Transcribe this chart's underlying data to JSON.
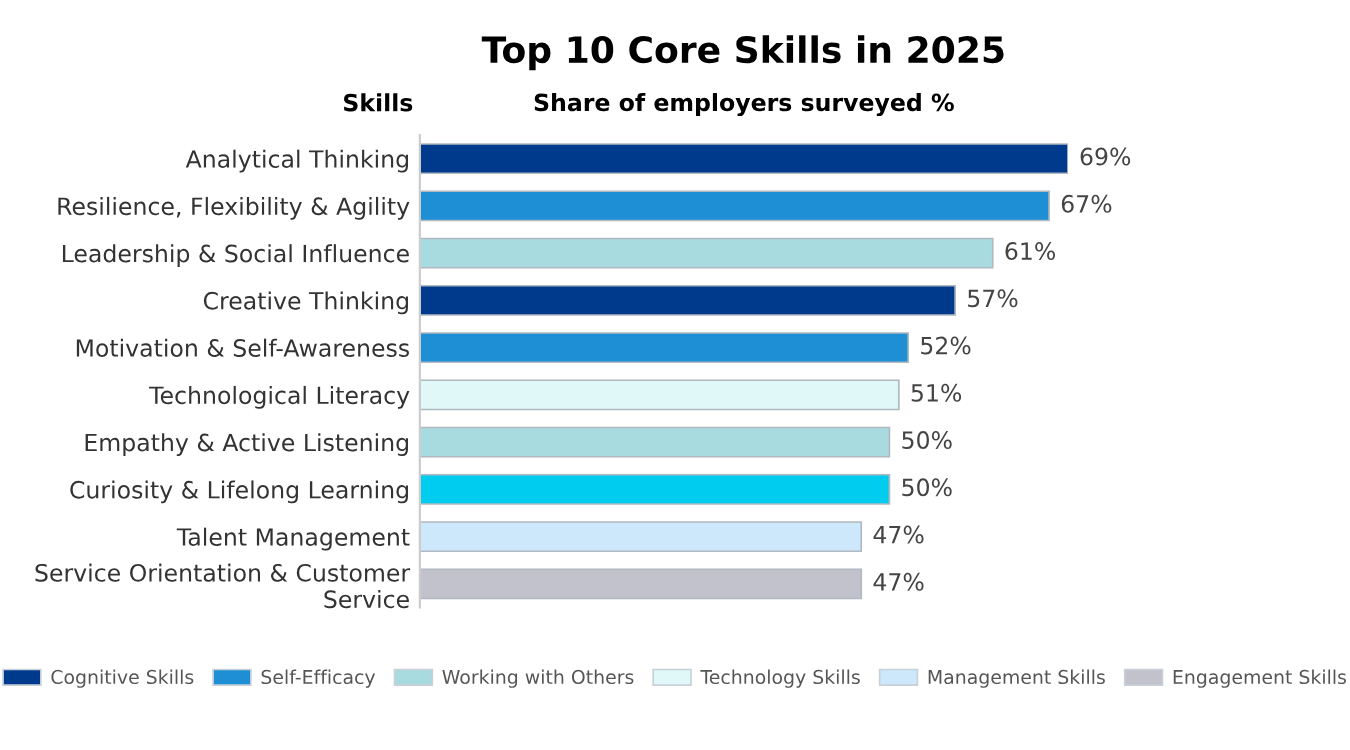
{
  "chart_data": {
    "type": "bar",
    "orientation": "horizontal",
    "title": "Top 10 Core Skills in 2025",
    "ylabel": "Skills",
    "xlabel": "Share of employers surveyed %",
    "categories": [
      "Analytical Thinking",
      "Resilience, Flexibility & Agility",
      "Leadership & Social Influence",
      "Creative Thinking",
      "Motivation & Self-Awareness",
      "Technological Literacy",
      "Empathy & Active Listening",
      "Curiosity & Lifelong Learning",
      "Talent Management",
      "Service Orientation & Customer Service"
    ],
    "series": [
      {
        "name": "Cognitive Skills",
        "color": "#003a8c",
        "values": [
          69,
          null,
          null,
          57,
          null,
          null,
          null,
          null,
          null,
          null
        ],
        "value_labels": [
          "69%",
          null,
          null,
          "57%",
          null,
          null,
          null,
          null,
          null,
          null
        ]
      },
      {
        "name": "Self-Efficacy",
        "color": "#1e8fd5",
        "colors": [
          null,
          "#1e8fd5",
          null,
          null,
          "#1e8fd5",
          null,
          null,
          "#00ccf0",
          null,
          null
        ],
        "values": [
          null,
          67,
          null,
          null,
          52,
          null,
          null,
          50,
          null,
          null
        ],
        "value_labels": [
          null,
          "67%",
          null,
          null,
          "52%",
          null,
          null,
          "50%",
          null,
          null
        ]
      },
      {
        "name": "Working with Others",
        "color": "#a8dbe0",
        "values": [
          null,
          null,
          61,
          null,
          null,
          null,
          50,
          null,
          null,
          null
        ],
        "value_labels": [
          null,
          null,
          "61%",
          null,
          null,
          null,
          "50%",
          null,
          null,
          null
        ]
      },
      {
        "name": "Technology Skills",
        "color": "#e0f8f8",
        "values": [
          null,
          null,
          null,
          null,
          null,
          51,
          null,
          null,
          null,
          null
        ],
        "value_labels": [
          null,
          null,
          null,
          null,
          null,
          "51%",
          null,
          null,
          null,
          null
        ]
      },
      {
        "name": "Management Skills",
        "color": "#cce8fa",
        "values": [
          null,
          null,
          null,
          null,
          null,
          null,
          null,
          null,
          47,
          null
        ],
        "value_labels": [
          null,
          null,
          null,
          null,
          null,
          null,
          null,
          null,
          "47%",
          null
        ]
      },
      {
        "name": "Engagement Skills",
        "color": "#c2c2cc",
        "values": [
          null,
          null,
          null,
          null,
          null,
          null,
          null,
          null,
          null,
          47
        ],
        "value_labels": [
          null,
          null,
          null,
          null,
          null,
          null,
          null,
          null,
          null,
          "47%"
        ]
      }
    ],
    "legend": "bottom"
  }
}
